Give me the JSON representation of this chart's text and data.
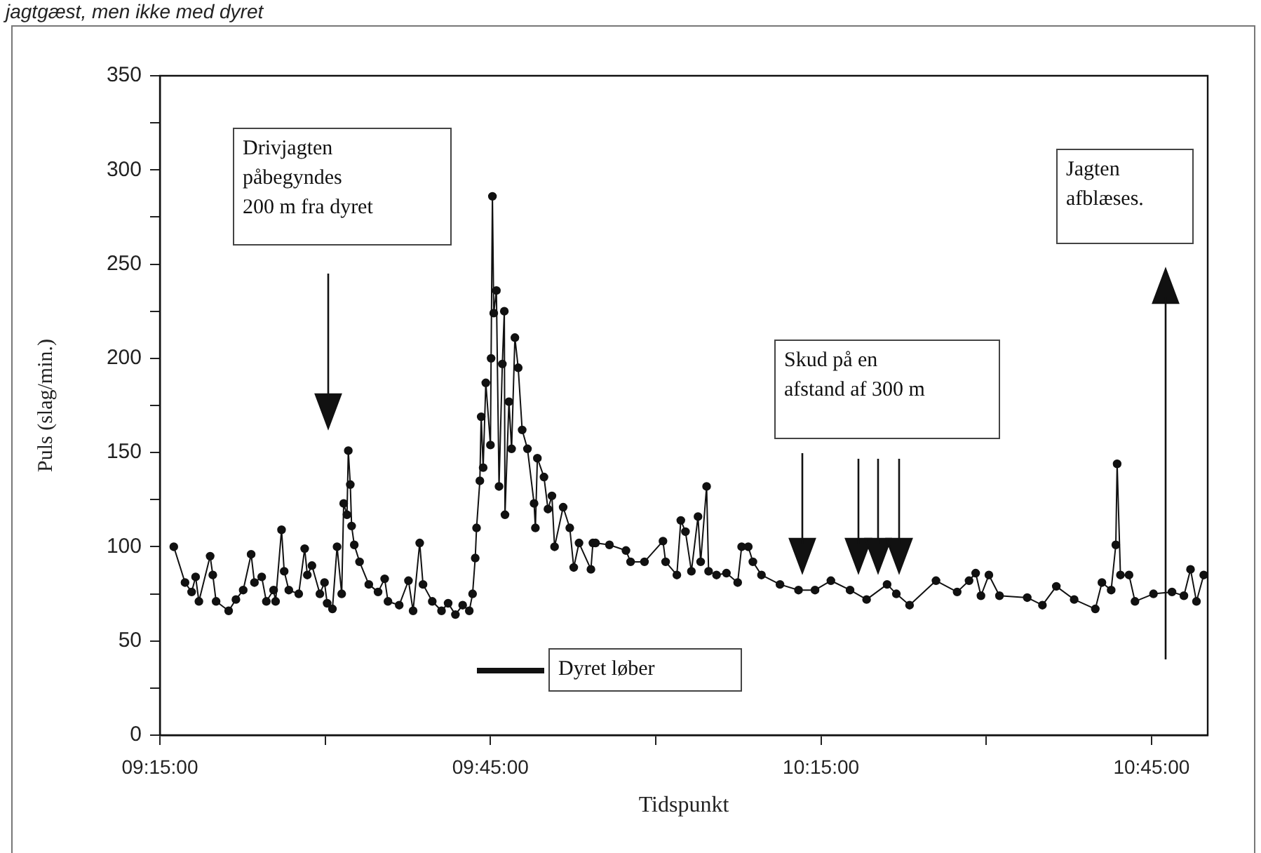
{
  "chart_data": {
    "type": "line",
    "xlabel": "Tidspunkt",
    "ylabel": "Puls (slag/min.)",
    "xlim": [
      9.25,
      10.835
    ],
    "xticks": [
      {
        "value": 9.25,
        "label": "09:15:00"
      },
      {
        "value": 9.5,
        "label": null
      },
      {
        "value": 9.75,
        "label": "09:45:00"
      },
      {
        "value": 10,
        "label": null
      },
      {
        "value": 10.25,
        "label": "10:15:00"
      },
      {
        "value": 10.5,
        "label": null
      },
      {
        "value": 10.75,
        "label": "10:45:00"
      }
    ],
    "ylim": [
      0,
      350
    ],
    "yticks": [
      0,
      {
        "value": 25,
        "label": null
      },
      50,
      {
        "value": 75,
        "label": null
      },
      100,
      {
        "value": 125,
        "label": null
      },
      150,
      {
        "value": 175,
        "label": null
      },
      200,
      {
        "value": 225,
        "label": null
      },
      250,
      {
        "value": 275,
        "label": null
      },
      300,
      {
        "value": 325,
        "label": null
      },
      350
    ],
    "marker": "circle",
    "line_style": "solid",
    "grid": false,
    "series": [
      {
        "color": "#111111",
        "x": [
          9.271,
          9.288,
          9.298,
          9.304,
          9.309,
          9.326,
          9.33,
          9.335,
          9.354,
          9.365,
          9.376,
          9.388,
          9.393,
          9.404,
          9.411,
          9.422,
          9.425,
          9.434,
          9.438,
          9.445,
          9.46,
          9.469,
          9.473,
          9.48,
          9.492,
          9.499,
          9.503,
          9.511,
          9.518,
          9.525,
          9.528,
          9.533,
          9.535,
          9.538,
          9.54,
          9.544,
          9.552,
          9.566,
          9.58,
          9.59,
          9.595,
          9.612,
          9.626,
          9.633,
          9.643,
          9.648,
          9.662,
          9.676,
          9.686,
          9.697,
          9.708,
          9.718,
          9.723,
          9.727,
          9.729,
          9.734,
          9.736,
          9.739,
          9.743,
          9.75,
          9.751,
          9.753,
          9.755,
          9.759,
          9.763,
          9.768,
          9.771,
          9.772,
          9.778,
          9.782,
          9.787,
          9.792,
          9.798,
          9.806,
          9.816,
          9.818,
          9.821,
          9.831,
          9.837,
          9.843,
          9.847,
          9.86,
          9.87,
          9.876,
          9.884,
          9.902,
          9.905,
          9.909,
          9.93,
          9.955,
          9.962,
          9.983,
          10.011,
          10.015,
          10.032,
          10.038,
          10.045,
          10.054,
          10.064,
          10.068,
          10.077,
          10.08,
          10.092,
          10.107,
          10.124,
          10.13,
          10.14,
          10.147,
          10.16,
          10.188,
          10.216,
          10.241,
          10.265,
          10.294,
          10.319,
          10.35,
          10.364,
          10.384,
          10.424,
          10.456,
          10.474,
          10.484,
          10.492,
          10.504,
          10.52,
          10.562,
          10.585,
          10.606,
          10.633,
          10.665,
          10.675,
          10.689,
          10.696,
          10.698,
          10.703,
          10.716,
          10.725,
          10.753,
          10.781,
          10.799,
          10.809,
          10.818,
          10.829
        ],
        "values": [
          100,
          81,
          76,
          84,
          71,
          95,
          85,
          71,
          66,
          72,
          77,
          96,
          81,
          84,
          71,
          77,
          71,
          109,
          87,
          77,
          75,
          99,
          85,
          90,
          75,
          81,
          70,
          67,
          100,
          75,
          123,
          117,
          151,
          133,
          111,
          101,
          92,
          80,
          76,
          83,
          71,
          69,
          82,
          66,
          102,
          80,
          71,
          66,
          70,
          64,
          69,
          66,
          75,
          94,
          110,
          135,
          169,
          142,
          187,
          154,
          200,
          286,
          224,
          236,
          132,
          197,
          225,
          117,
          177,
          152,
          211,
          195,
          162,
          152,
          123,
          110,
          147,
          137,
          120,
          127,
          100,
          121,
          110,
          89,
          102,
          88,
          102,
          102,
          101,
          98,
          92,
          92,
          103,
          92,
          85,
          114,
          108,
          87,
          116,
          92,
          132,
          87,
          85,
          86,
          81,
          100,
          100,
          92,
          85,
          80,
          77,
          77,
          82,
          77,
          72,
          80,
          75,
          69,
          82,
          76,
          82,
          86,
          74,
          85,
          74,
          73,
          69,
          79,
          72,
          67,
          81,
          77,
          101,
          144,
          85,
          85,
          71,
          75,
          76,
          74,
          88,
          71,
          85
        ]
      }
    ],
    "annotations": [
      "Drivjagten\npåbegyndes\n200 m fra dyret",
      "Skud på en\nafstand af 300 m",
      "Jagten\nafblæses.",
      "jagtgæst, men ikke med dyret",
      "Dyret løber"
    ]
  }
}
